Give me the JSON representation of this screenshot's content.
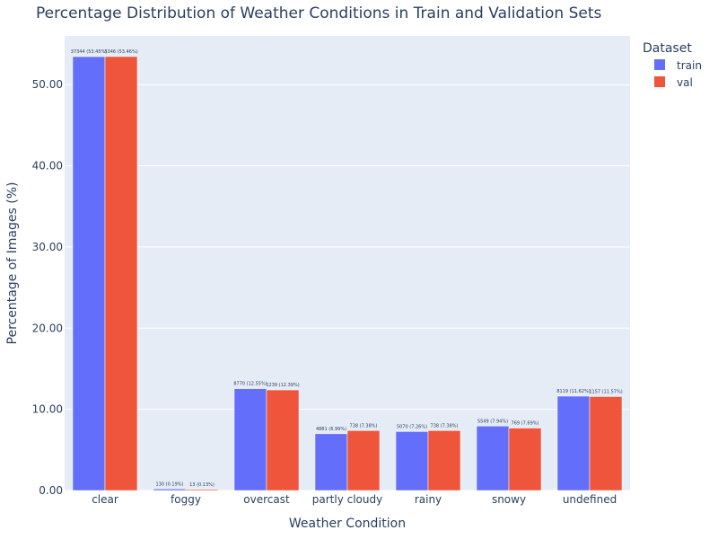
{
  "chart_data": {
    "type": "bar",
    "title": "Percentage Distribution of Weather Conditions in Train and Validation Sets",
    "xlabel": "Weather Condition",
    "ylabel": "Percentage of Images (%)",
    "ylim": [
      0,
      56
    ],
    "yticks": [
      0,
      10,
      20,
      30,
      40,
      50
    ],
    "ytick_labels": [
      "0.00",
      "10.00",
      "20.00",
      "30.00",
      "40.00",
      "50.00"
    ],
    "grid": true,
    "legend_title": "Dataset",
    "legend_position": "top-right",
    "categories": [
      "clear",
      "foggy",
      "overcast",
      "partly cloudy",
      "rainy",
      "snowy",
      "undefined"
    ],
    "series": [
      {
        "name": "train",
        "color": "#636efa",
        "values": [
          53.45,
          0.19,
          12.55,
          6.99,
          7.26,
          7.94,
          11.62
        ],
        "labels": [
          "37344 (53.45%)",
          "130 (0.19%)",
          "8770 (12.55%)",
          "4881 (6.99%)",
          "5070 (7.26%)",
          "5549 (7.94%)",
          "8119 (11.62%)"
        ]
      },
      {
        "name": "val",
        "color": "#ef553b",
        "values": [
          53.46,
          0.13,
          12.39,
          7.38,
          7.38,
          7.69,
          11.57
        ],
        "labels": [
          "5346 (53.46%)",
          "13 (0.13%)",
          "1239 (12.39%)",
          "738 (7.38%)",
          "738 (7.38%)",
          "769 (7.69%)",
          "1157 (11.57%)"
        ]
      }
    ],
    "plot_bg": "#e5ecf6",
    "text_color": "#2a3f5f"
  }
}
